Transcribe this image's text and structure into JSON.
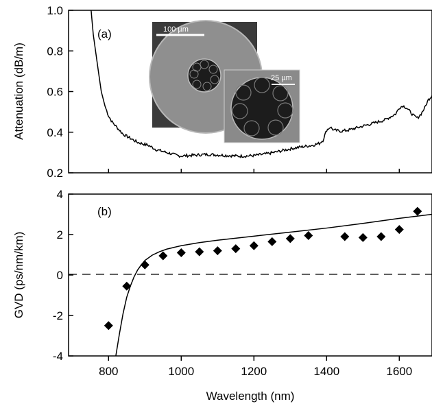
{
  "chart_data": [
    {
      "type": "line",
      "panel_label": "(a)",
      "ylabel": "Attenuation (dB/m)",
      "xlim": [
        690,
        1690
      ],
      "ylim": [
        0.2,
        1.0
      ],
      "yticks": [
        "0.2",
        "0.4",
        "0.6",
        "0.8",
        "1.0"
      ],
      "series": [
        {
          "points": [
            [
              752,
              1.0
            ],
            [
              758,
              0.88
            ],
            [
              765,
              0.79
            ],
            [
              772,
              0.7
            ],
            [
              780,
              0.6
            ],
            [
              790,
              0.53
            ],
            [
              800,
              0.48
            ],
            [
              810,
              0.45
            ],
            [
              820,
              0.43
            ],
            [
              830,
              0.41
            ],
            [
              840,
              0.39
            ],
            [
              850,
              0.38
            ],
            [
              860,
              0.37
            ],
            [
              870,
              0.36
            ],
            [
              880,
              0.35
            ],
            [
              890,
              0.345
            ],
            [
              900,
              0.34
            ],
            [
              910,
              0.335
            ],
            [
              920,
              0.325
            ],
            [
              930,
              0.315
            ],
            [
              940,
              0.31
            ],
            [
              950,
              0.305
            ],
            [
              960,
              0.3
            ],
            [
              970,
              0.295
            ],
            [
              980,
              0.29
            ],
            [
              990,
              0.285
            ],
            [
              1000,
              0.283
            ],
            [
              1020,
              0.285
            ],
            [
              1040,
              0.287
            ],
            [
              1060,
              0.29
            ],
            [
              1080,
              0.29
            ],
            [
              1100,
              0.288
            ],
            [
              1120,
              0.286
            ],
            [
              1140,
              0.284
            ],
            [
              1160,
              0.282
            ],
            [
              1180,
              0.283
            ],
            [
              1200,
              0.285
            ],
            [
              1220,
              0.29
            ],
            [
              1240,
              0.295
            ],
            [
              1260,
              0.302
            ],
            [
              1280,
              0.31
            ],
            [
              1300,
              0.318
            ],
            [
              1320,
              0.325
            ],
            [
              1340,
              0.33
            ],
            [
              1360,
              0.335
            ],
            [
              1380,
              0.345
            ],
            [
              1390,
              0.36
            ],
            [
              1400,
              0.41
            ],
            [
              1410,
              0.425
            ],
            [
              1420,
              0.41
            ],
            [
              1440,
              0.405
            ],
            [
              1460,
              0.41
            ],
            [
              1480,
              0.42
            ],
            [
              1500,
              0.43
            ],
            [
              1520,
              0.44
            ],
            [
              1540,
              0.45
            ],
            [
              1560,
              0.46
            ],
            [
              1580,
              0.48
            ],
            [
              1590,
              0.49
            ],
            [
              1600,
              0.52
            ],
            [
              1610,
              0.53
            ],
            [
              1620,
              0.52
            ],
            [
              1630,
              0.5
            ],
            [
              1640,
              0.48
            ],
            [
              1650,
              0.47
            ],
            [
              1660,
              0.49
            ],
            [
              1670,
              0.52
            ],
            [
              1680,
              0.56
            ],
            [
              1690,
              0.58
            ]
          ]
        }
      ],
      "inset_images": [
        {
          "scale_label": "100 µm"
        },
        {
          "scale_label": "25 µm"
        }
      ]
    },
    {
      "type": "scatter",
      "panel_label": "(b)",
      "xlabel": "Wavelength (nm)",
      "ylabel": "GVD (ps/nm/km)",
      "xlim": [
        690,
        1690
      ],
      "ylim": [
        -4,
        4
      ],
      "xticks": [
        "800",
        "1000",
        "1200",
        "1400",
        "1600"
      ],
      "yticks": [
        "-4",
        "-2",
        "0",
        "2",
        "4"
      ],
      "reference_line": {
        "y": 0,
        "style": "dashed"
      },
      "series": [
        {
          "type": "scatter",
          "marker": "diamond",
          "x": [
            800,
            850,
            900,
            950,
            1000,
            1050,
            1100,
            1150,
            1200,
            1250,
            1300,
            1350,
            1450,
            1500,
            1550,
            1600,
            1650
          ],
          "y": [
            -2.5,
            -0.55,
            0.5,
            0.95,
            1.1,
            1.15,
            1.2,
            1.3,
            1.45,
            1.65,
            1.8,
            1.95,
            1.9,
            1.85,
            1.9,
            2.25,
            3.15
          ]
        },
        {
          "type": "line",
          "points": [
            [
              820,
              -4.0
            ],
            [
              830,
              -2.9
            ],
            [
              840,
              -1.9
            ],
            [
              850,
              -1.1
            ],
            [
              860,
              -0.55
            ],
            [
              870,
              -0.1
            ],
            [
              880,
              0.25
            ],
            [
              890,
              0.5
            ],
            [
              900,
              0.72
            ],
            [
              920,
              0.98
            ],
            [
              940,
              1.15
            ],
            [
              960,
              1.28
            ],
            [
              1000,
              1.45
            ],
            [
              1050,
              1.6
            ],
            [
              1100,
              1.72
            ],
            [
              1200,
              1.92
            ],
            [
              1300,
              2.12
            ],
            [
              1400,
              2.32
            ],
            [
              1500,
              2.55
            ],
            [
              1600,
              2.8
            ],
            [
              1690,
              3.0
            ]
          ]
        }
      ]
    }
  ]
}
